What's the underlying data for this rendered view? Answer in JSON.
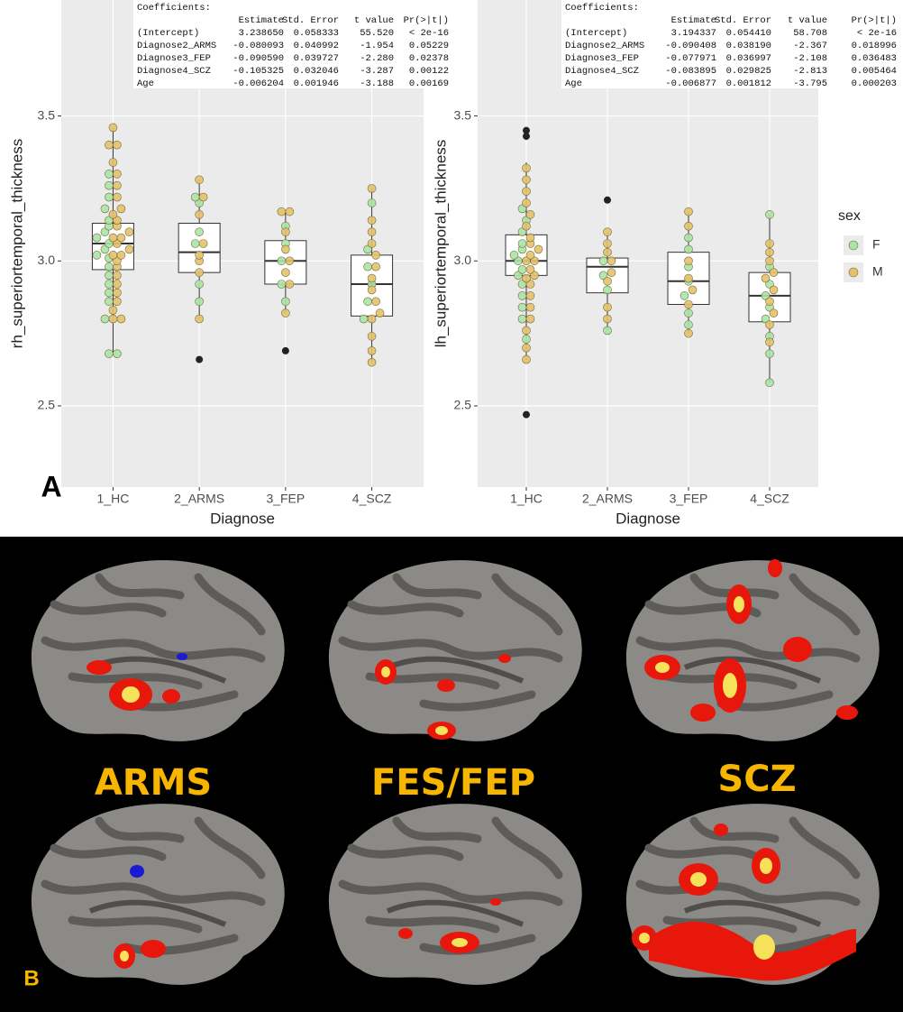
{
  "figure": {
    "panel_labels": [
      "A",
      "B"
    ],
    "brain_labels": [
      "ARMS",
      "FES/FEP",
      "SCZ"
    ]
  },
  "legend": {
    "title": "sex",
    "items": [
      {
        "name": "F",
        "color": "#a9e4a9"
      },
      {
        "name": "M",
        "color": "#e3c26b"
      }
    ]
  },
  "chart_data": [
    {
      "type": "box",
      "ylabel": "rh_superiortemporal_thickness",
      "xlabel": "Diagnose",
      "categories": [
        "1_HC",
        "2_ARMS",
        "3_FEP",
        "4_SCZ"
      ],
      "ylim": [
        2.22,
        3.9
      ],
      "yticks": [
        2.5,
        {
          "value": 3,
          "label": "3.0"
        },
        3.5
      ],
      "grid": true,
      "boxes": [
        {
          "low": 2.68,
          "q1": 2.97,
          "median": 3.06,
          "q3": 3.13,
          "high": 3.46,
          "outliers": []
        },
        {
          "low": 2.8,
          "q1": 2.96,
          "median": 3.03,
          "q3": 3.13,
          "high": 3.28,
          "outliers": [
            2.66
          ]
        },
        {
          "low": 2.82,
          "q1": 2.92,
          "median": 3.0,
          "q3": 3.07,
          "high": 3.17,
          "outliers": [
            2.69
          ]
        },
        {
          "low": 2.65,
          "q1": 2.81,
          "median": 2.92,
          "q3": 3.02,
          "high": 3.25,
          "outliers": []
        }
      ],
      "dots": [
        [
          [
            2.68,
            2.68,
            2.8,
            2.86,
            2.89,
            2.92,
            2.95,
            2.98,
            3.01,
            3.02,
            3.04,
            3.06,
            3.08,
            3.1,
            3.12,
            3.14,
            3.18,
            3.22,
            3.26,
            3.3
          ],
          [
            2.86,
            2.92,
            3.06,
            3.1,
            3.2,
            3.22
          ],
          [
            2.86,
            2.92,
            3.0,
            3.06,
            3.12
          ],
          [
            2.8,
            2.86,
            2.92,
            2.98,
            3.04,
            3.2
          ]
        ],
        [
          [
            2.8,
            2.8,
            2.83,
            2.86,
            2.89,
            2.92,
            2.95,
            2.98,
            3.0,
            3.02,
            3.02,
            3.04,
            3.06,
            3.08,
            3.08,
            3.1,
            3.12,
            3.14,
            3.16,
            3.18,
            3.22,
            3.26,
            3.3,
            3.34,
            3.4,
            3.4,
            3.46
          ],
          [
            2.8,
            2.96,
            3.0,
            3.02,
            3.06,
            3.16,
            3.22,
            3.28
          ],
          [
            2.82,
            2.92,
            2.96,
            3.0,
            3.04,
            3.1,
            3.17,
            3.17
          ],
          [
            2.65,
            2.69,
            2.74,
            2.8,
            2.82,
            2.86,
            2.9,
            2.94,
            2.98,
            3.02,
            3.06,
            3.1,
            3.14,
            3.25
          ]
        ]
      ],
      "coefficients": {
        "title": "Coefficients:",
        "header": [
          "Estimate",
          "Std. Error",
          "t value",
          "Pr(>|t|)"
        ],
        "rows": [
          [
            "(Intercept)",
            "3.238650",
            "0.058333",
            "55.520",
            "< 2e-16"
          ],
          [
            "Diagnose2_ARMS",
            "-0.080093",
            "0.040992",
            "-1.954",
            "0.05229"
          ],
          [
            "Diagnose3_FEP",
            "-0.090590",
            "0.039727",
            "-2.280",
            "0.02378"
          ],
          [
            "Diagnose4_SCZ",
            "-0.105325",
            "0.032046",
            "-3.287",
            "0.00122"
          ],
          [
            "Age",
            "-0.006204",
            "0.001946",
            "-3.188",
            "0.00169"
          ]
        ]
      }
    },
    {
      "type": "box",
      "ylabel": "lh_superiortemporal_thickness",
      "xlabel": "Diagnose",
      "categories": [
        "1_HC",
        "2_ARMS",
        "3_FEP",
        "4_SCZ"
      ],
      "ylim": [
        2.22,
        3.9
      ],
      "yticks": [
        2.5,
        {
          "value": 3,
          "label": "3.0"
        },
        3.5
      ],
      "grid": true,
      "boxes": [
        {
          "low": 2.66,
          "q1": 2.95,
          "median": 3.0,
          "q3": 3.09,
          "high": 3.34,
          "outliers": [
            3.45,
            3.43,
            2.47
          ]
        },
        {
          "low": 2.76,
          "q1": 2.89,
          "median": 2.98,
          "q3": 3.01,
          "high": 3.1,
          "outliers": [
            3.21
          ]
        },
        {
          "low": 2.75,
          "q1": 2.85,
          "median": 2.93,
          "q3": 3.03,
          "high": 3.17,
          "outliers": []
        },
        {
          "low": 2.58,
          "q1": 2.79,
          "median": 2.88,
          "q3": 2.96,
          "high": 3.16,
          "outliers": []
        }
      ],
      "dots": [
        [
          [
            2.73,
            2.8,
            2.84,
            2.88,
            2.92,
            2.95,
            2.97,
            3.0,
            3.02,
            3.04,
            3.06,
            3.1,
            3.14,
            3.18
          ],
          [
            2.76,
            2.9,
            2.95,
            3.0
          ],
          [
            2.78,
            2.82,
            2.88,
            2.93,
            2.98,
            3.04,
            3.08
          ],
          [
            2.58,
            2.68,
            2.74,
            2.8,
            2.84,
            2.88,
            2.92,
            2.98,
            3.16
          ]
        ],
        [
          [
            2.66,
            2.7,
            2.76,
            2.8,
            2.84,
            2.88,
            2.92,
            2.94,
            2.95,
            2.97,
            3.0,
            3.0,
            3.02,
            3.04,
            3.06,
            3.08,
            3.12,
            3.16,
            3.2,
            3.24,
            3.28,
            3.32
          ],
          [
            2.8,
            2.84,
            2.93,
            2.96,
            3.0,
            3.03,
            3.06,
            3.1
          ],
          [
            2.75,
            2.85,
            2.9,
            2.94,
            3.0,
            3.12,
            3.17
          ],
          [
            2.72,
            2.78,
            2.82,
            2.86,
            2.9,
            2.94,
            2.96,
            3.0,
            3.03,
            3.06
          ]
        ]
      ],
      "coefficients": {
        "title": "Coefficients:",
        "header": [
          "Estimate",
          "Std. Error",
          "t value",
          "Pr(>|t|)"
        ],
        "rows": [
          [
            "(Intercept)",
            "3.194337",
            "0.054410",
            "58.708",
            "< 2e-16"
          ],
          [
            "Diagnose2_ARMS",
            "-0.090408",
            "0.038190",
            "-2.367",
            "0.018996"
          ],
          [
            "Diagnose3_FEP",
            "-0.077971",
            "0.036997",
            "-2.108",
            "0.036483"
          ],
          [
            "Diagnose4_SCZ",
            "-0.083895",
            "0.029825",
            "-2.813",
            "0.005464"
          ],
          [
            "Age",
            "-0.006877",
            "0.001812",
            "-3.795",
            "0.000203"
          ]
        ]
      }
    }
  ]
}
